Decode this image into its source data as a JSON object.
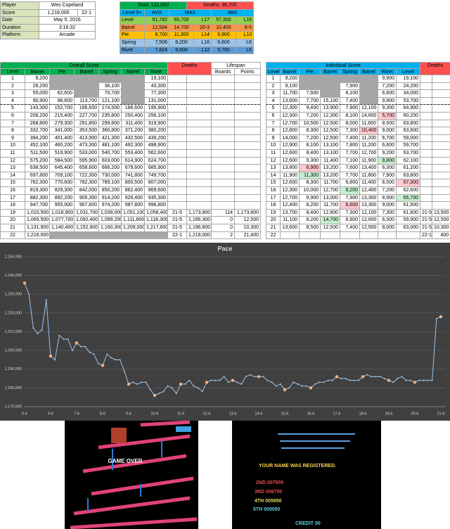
{
  "player_info": {
    "rows": [
      [
        "Player",
        "Wes Copeland"
      ],
      [
        "Score",
        "1,218,000",
        "22-1"
      ],
      [
        "Date",
        "May 5, 2016"
      ],
      [
        "Duration",
        "3:16:32"
      ],
      [
        "Platform",
        "Arcade"
      ]
    ]
  },
  "summary": {
    "start": "Start: 131,000",
    "deaths": "Deaths: 36,700",
    "header": [
      "Level 5+",
      "AVG",
      "MAX",
      "MIN"
    ],
    "rows": [
      {
        "name": "Level",
        "color": "#92d050",
        "cells": [
          "61,782",
          "65,700",
          "L17",
          "57,300",
          "L15"
        ]
      },
      {
        "name": "Barrel",
        "color": "#f79646",
        "cells": [
          "12,584",
          "14,700",
          "20-3",
          "10,400",
          "8-5"
        ]
      },
      {
        "name": "Pie",
        "color": "#ffc000",
        "cells": [
          "8,700",
          "11,300",
          "L14",
          "6,900",
          "L13"
        ]
      },
      {
        "name": "Spring",
        "color": "#9dc3e6",
        "cells": [
          "7,506",
          "8,200",
          "L16",
          "6,600",
          "L6"
        ]
      },
      {
        "name": "Rivet",
        "color": "#5b9bd5",
        "cells": [
          "7,824",
          "9,800",
          "L12",
          "5,700",
          "L6"
        ]
      }
    ]
  },
  "overall": {
    "title": "Overall Score",
    "deaths_title": "Deaths",
    "lifespan_title": "Lifespan",
    "header": [
      "Level",
      "Barrel",
      "Pie",
      "Barrel",
      "Spring",
      "Barrel",
      "Rivet"
    ],
    "lifespan_header": [
      "Boards",
      "Points"
    ],
    "rows": [
      {
        "level": "1",
        "scores": [
          "9,200",
          null,
          null,
          null,
          null,
          "19,100"
        ]
      },
      {
        "level": "2",
        "scores": [
          "28,200",
          null,
          null,
          "36,100",
          null,
          "43,300"
        ]
      },
      {
        "level": "3",
        "scores": [
          "55,000",
          "62,600",
          null,
          "70,700",
          null,
          "77,300"
        ]
      },
      {
        "level": "4",
        "scores": [
          "90,900",
          "98,600",
          "113,700",
          "121,100",
          null,
          "131,000"
        ]
      },
      {
        "level": "5",
        "scores": [
          "143,300",
          "152,700",
          "166,600",
          "174,500",
          "186,600",
          "195,900"
        ]
      },
      {
        "level": "6",
        "scores": [
          "208,200",
          "215,400",
          "227,700",
          "235,800",
          "250,400",
          "256,100"
        ]
      },
      {
        "level": "7",
        "scores": [
          "268,800",
          "279,300",
          "291,800",
          "299,800",
          "311,400",
          "319,900"
        ]
      },
      {
        "level": "8",
        "scores": [
          "332,700",
          "341,000",
          "353,500",
          "360,800",
          "371,200",
          "380,200"
        ]
      },
      {
        "level": "9",
        "scores": [
          "394,200",
          "401,400",
          "413,900",
          "421,300",
          "432,500",
          "439,200"
        ]
      },
      {
        "level": "10",
        "scores": [
          "452,100",
          "460,200",
          "473,300",
          "481,100",
          "492,300",
          "498,900"
        ]
      },
      {
        "level": "11",
        "scores": [
          "511,500",
          "519,900",
          "533,000",
          "540,700",
          "553,400",
          "562,600"
        ]
      },
      {
        "level": "12",
        "scores": [
          "575,200",
          "584,500",
          "595,900",
          "603,000",
          "614,900",
          "624,700"
        ]
      },
      {
        "level": "13",
        "scores": [
          "638,500",
          "645,400",
          "658,600",
          "666,200",
          "679,600",
          "685,900"
        ]
      },
      {
        "level": "14",
        "scores": [
          "697,800",
          "709,100",
          "722,300",
          "730,000",
          "741,800",
          "749,700"
        ]
      },
      {
        "level": "15",
        "scores": [
          "762,300",
          "770,600",
          "782,300",
          "789,100",
          "800,500",
          "807,000"
        ]
      },
      {
        "level": "16",
        "scores": [
          "819,300",
          "829,300",
          "842,000",
          "850,200",
          "862,400",
          "869,600"
        ]
      },
      {
        "level": "17",
        "scores": [
          "882,300",
          "892,200",
          "905,300",
          "914,200",
          "926,400",
          "935,300"
        ]
      },
      {
        "level": "18",
        "scores": [
          "947,700",
          "955,900",
          "967,600",
          "974,200",
          "987,800",
          "996,800"
        ]
      },
      {
        "level": "19",
        "scores": [
          "1,010,500",
          "1,018,900",
          "1,031,700",
          "1,039,000",
          "1,051,100",
          "1,058,400"
        ],
        "deaths": [
          "21-5",
          "1,173,800"
        ],
        "lifespan": [
          "114",
          "1,173,800"
        ]
      },
      {
        "level": "20",
        "scores": [
          "1,069,500",
          "1,077,700",
          "1,092,400",
          "1,099,200",
          "1,111,800",
          "1,118,300"
        ],
        "deaths": [
          "21-5",
          "1,186,300"
        ],
        "lifespan": [
          "0",
          "12,500"
        ]
      },
      {
        "level": "21",
        "scores": [
          "1,131,900",
          "1,140,400",
          "1,152,900",
          "1,160,300",
          "1,209,000",
          "1,217,600"
        ],
        "deaths": [
          "21-5",
          "1,196,600"
        ],
        "lifespan": [
          "0",
          "10,300"
        ]
      },
      {
        "level": "22",
        "scores": [
          "1,218,000",
          null,
          null,
          null,
          null,
          null
        ],
        "deaths": [
          "22-1",
          "1,218,000"
        ],
        "lifespan": [
          "2",
          "21,400"
        ]
      }
    ]
  },
  "individual": {
    "title": "Individual Score",
    "deaths_title": "Deaths",
    "header": [
      "Level",
      "Barrel",
      "Pie",
      "Barrel",
      "Spring",
      "Barrel",
      "Rivet",
      "Level"
    ],
    "rows": [
      {
        "level": "1",
        "scores": [
          "9,200",
          null,
          null,
          null,
          null,
          "9,900"
        ],
        "total": "19,100"
      },
      {
        "level": "2",
        "scores": [
          "9,100",
          null,
          null,
          "7,900",
          null,
          "7,200"
        ],
        "total": "24,200"
      },
      {
        "level": "3",
        "scores": [
          "11,700",
          "7,600",
          null,
          "8,100",
          null,
          "6,600"
        ],
        "total": "34,000"
      },
      {
        "level": "4",
        "scores": [
          "13,600",
          "7,700",
          "15,100",
          "7,400",
          null,
          "9,900"
        ],
        "total": "53,700"
      },
      {
        "level": "5",
        "scores": [
          "12,300",
          "9,400",
          "13,900",
          "7,900",
          "12,100",
          "9,300"
        ],
        "total": "64,900"
      },
      {
        "level": "6",
        "scores": [
          "12,300",
          "7,200",
          "12,300",
          "8,100",
          "14,600",
          {
            "text": "5,700",
            "highlight": "#ffc7ce"
          }
        ],
        "total": "60,200"
      },
      {
        "level": "7",
        "scores": [
          "12,700",
          "10,500",
          "12,500",
          "8,000",
          "11,600",
          "8,500"
        ],
        "total": "63,800"
      },
      {
        "level": "8",
        "scores": [
          "12,800",
          "8,300",
          "12,500",
          "7,300",
          {
            "text": "10,400",
            "highlight": "#ffc7ce"
          },
          "9,000"
        ],
        "total": "63,600"
      },
      {
        "level": "9",
        "scores": [
          "14,000",
          "7,200",
          "12,500",
          "7,400",
          "11,200",
          "6,700"
        ],
        "total": "59,000"
      },
      {
        "level": "10",
        "scores": [
          "12,900",
          "8,100",
          "13,100",
          "7,800",
          "11,200",
          "6,600"
        ],
        "total": "59,700"
      },
      {
        "level": "11",
        "scores": [
          "12,600",
          "8,400",
          "13,100",
          "7,700",
          "12,700",
          "9,200"
        ],
        "total": "63,700"
      },
      {
        "level": "12",
        "scores": [
          "12,600",
          "9,300",
          "11,400",
          "7,100",
          "11,900",
          {
            "text": "9,800",
            "highlight": "#c6efce"
          }
        ],
        "total": "62,100"
      },
      {
        "level": "13",
        "scores": [
          "13,800",
          {
            "text": "6,900",
            "highlight": "#ffc7ce"
          },
          "13,200",
          "7,600",
          "13,400",
          "6,300"
        ],
        "total": "61,200"
      },
      {
        "level": "14",
        "scores": [
          "11,900",
          {
            "text": "11,300",
            "highlight": "#c6efce"
          },
          "13,200",
          "7,700",
          "11,800",
          "7,900"
        ],
        "total": "63,800"
      },
      {
        "level": "15",
        "scores": [
          "12,600",
          "8,300",
          "11,700",
          "6,800",
          "11,400",
          "6,500"
        ],
        "total": {
          "text": "57,300",
          "highlight": "#ffc7ce"
        }
      },
      {
        "level": "16",
        "scores": [
          "12,300",
          "10,000",
          "12,700",
          {
            "text": "8,200",
            "highlight": "#c6efce"
          },
          "12,400",
          "7,200"
        ],
        "total": "62,600"
      },
      {
        "level": "17",
        "scores": [
          "12,700",
          "9,900",
          "13,000",
          "7,900",
          "13,300",
          "8,900"
        ],
        "total": {
          "text": "65,700",
          "highlight": "#c6efce"
        }
      },
      {
        "level": "18",
        "scores": [
          "12,400",
          "8,200",
          "11,700",
          {
            "text": "6,600",
            "highlight": "#ffc7ce"
          },
          "13,300",
          "9,000"
        ],
        "total": "61,500"
      },
      {
        "level": "19",
        "scores": [
          "13,700",
          "8,400",
          "12,800",
          "7,300",
          "12,100",
          "7,300"
        ],
        "total": "61,600",
        "deaths": [
          "21-5",
          "13,500"
        ]
      },
      {
        "level": "20",
        "scores": [
          "11,100",
          "8,200",
          {
            "text": "14,700",
            "highlight": "#c6efce"
          },
          "6,800",
          "12,600",
          "6,500"
        ],
        "total": "59,900",
        "deaths": [
          "21-5",
          "12,500"
        ]
      },
      {
        "level": "21",
        "scores": [
          "13,600",
          "8,500",
          "12,500",
          "7,400",
          "12,500",
          "8,000"
        ],
        "total": "63,000",
        "deaths": [
          "21-5",
          "10,300"
        ]
      },
      {
        "level": "22",
        "deaths": [
          "22-1",
          "400"
        ]
      }
    ]
  },
  "chart_data": {
    "type": "line",
    "title": "Pace",
    "color": "#9dc3e6",
    "marker_color": "#f4b183",
    "grid": true,
    "categories": [
      "5-6",
      null,
      null,
      null,
      null,
      null,
      "6-6",
      null,
      null,
      null,
      null,
      null,
      "7-6",
      null,
      null,
      null,
      null,
      null,
      "8-6",
      null,
      null,
      null,
      null,
      null,
      "9-6",
      null,
      null,
      null,
      null,
      null,
      "10-6",
      null,
      null,
      null,
      null,
      null,
      "11-6",
      null,
      null,
      null,
      null,
      null,
      "12-6",
      null,
      null,
      null,
      null,
      null,
      "13-6",
      null,
      null,
      null,
      null,
      null,
      "14-6",
      null,
      null,
      null,
      null,
      null,
      "15-6",
      null,
      null,
      null,
      null,
      null,
      "16-6",
      null,
      null,
      null,
      null,
      null,
      "17-6",
      null,
      null,
      null,
      null,
      null,
      "18-6",
      null,
      null,
      null,
      null,
      null,
      "19-6",
      null,
      null,
      null,
      null,
      null,
      "20-6",
      null,
      null,
      null,
      null,
      null,
      "21-6"
    ],
    "values": [
      1236000,
      1230000,
      1212000,
      1209000,
      1211000,
      1227000,
      1197000,
      1195000,
      1208000,
      1206000,
      1206000,
      1200000,
      1204000,
      1202000,
      1202000,
      1199000,
      1198000,
      1193000,
      1192000,
      1198000,
      1196000,
      1195000,
      1195000,
      1189000,
      1182000,
      1183000,
      1182000,
      1183000,
      1183000,
      1179000,
      1176000,
      1177000,
      1178000,
      1181000,
      1180000,
      1177000,
      1182000,
      1182000,
      1184000,
      1181000,
      1180000,
      1178000,
      1183000,
      1184000,
      1184000,
      1184000,
      1186000,
      1183000,
      1184000,
      1183000,
      1182000,
      1186000,
      1187000,
      1186000,
      1186000,
      1186000,
      1184000,
      1183000,
      1181000,
      1182000,
      1179000,
      1180000,
      1183000,
      1182000,
      1181000,
      1181000,
      1180000,
      1182000,
      1183000,
      1183000,
      1184000,
      1184000,
      1186000,
      1185000,
      1185000,
      1184000,
      1184000,
      1184000,
      1186000,
      1187000,
      1186000,
      1186000,
      1186000,
      1185000,
      1184000,
      1183000,
      1185000,
      1186000,
      1184000,
      1184000,
      1183000,
      1184000,
      1184000,
      1184000,
      1184000,
      1217000,
      1218000
    ],
    "ylim": [
      1170000,
      1250000
    ],
    "yticks": [
      {
        "value": 1170000,
        "label": "1,170,000"
      },
      {
        "value": 1180000,
        "label": "1,180,000"
      },
      {
        "value": 1190000,
        "label": "1,190,000"
      },
      {
        "value": 1200000,
        "label": "1,200,000"
      },
      {
        "value": 1210000,
        "label": "1,210,000"
      },
      {
        "value": 1220000,
        "label": "1,220,000"
      },
      {
        "value": 1230000,
        "label": "1,230,000"
      },
      {
        "value": 1240000,
        "label": "1,240,000"
      },
      {
        "value": 1250000,
        "label": "1,250,000"
      }
    ]
  },
  "screens": [
    {
      "lines": [
        "GAME OVER"
      ]
    },
    {
      "lines": [
        "YOUR NAME WAS REGISTERED.",
        "2ND  007650",
        "3RD  006700",
        "4TH  005950",
        "5TH  005050",
        "CREDIT 00"
      ]
    }
  ]
}
